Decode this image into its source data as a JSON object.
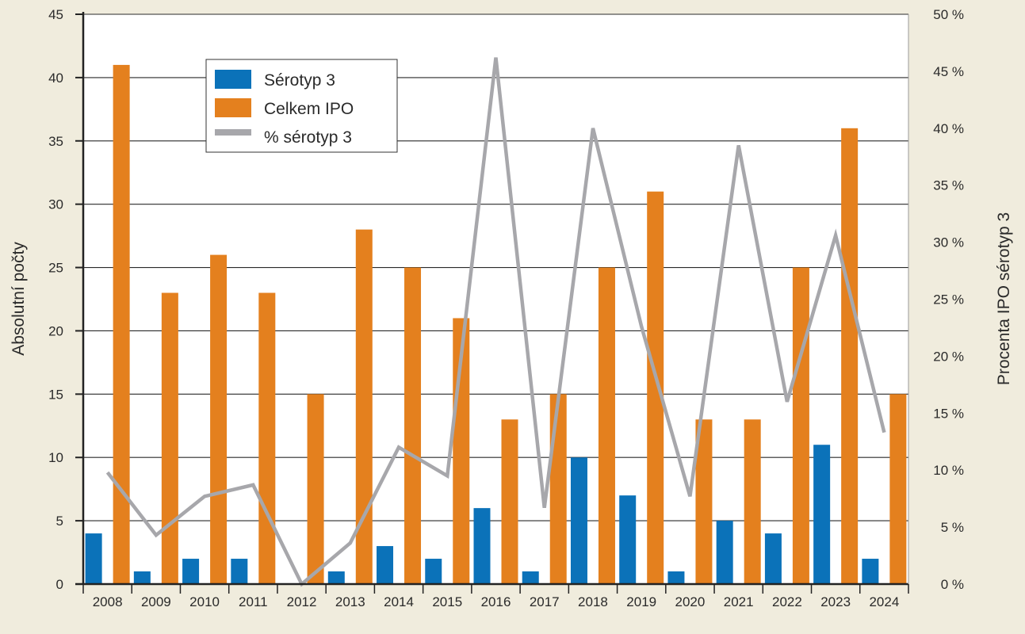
{
  "chart_data": {
    "type": "bar",
    "categories": [
      "2008",
      "2009",
      "2010",
      "2011",
      "2012",
      "2013",
      "2014",
      "2015",
      "2016",
      "2017",
      "2018",
      "2019",
      "2020",
      "2021",
      "2022",
      "2023",
      "2024"
    ],
    "series": [
      {
        "name": "Sérotyp 3",
        "type": "bar",
        "axis": "left",
        "color": "#0b72b9",
        "values": [
          4,
          1,
          2,
          2,
          0,
          1,
          3,
          2,
          6,
          1,
          10,
          7,
          1,
          5,
          4,
          11,
          2
        ]
      },
      {
        "name": "Celkem IPO",
        "type": "bar",
        "axis": "left",
        "color": "#e4801e",
        "values": [
          41,
          23,
          26,
          23,
          15,
          28,
          25,
          21,
          13,
          15,
          25,
          31,
          13,
          13,
          25,
          36,
          15
        ]
      },
      {
        "name": "% sérotyp 3",
        "type": "line",
        "axis": "right",
        "color": "#a7a7ab",
        "values": [
          9.8,
          4.3,
          7.7,
          8.7,
          0,
          3.6,
          12,
          9.5,
          46.2,
          6.7,
          40,
          22.6,
          7.7,
          38.5,
          16,
          30.6,
          13.3
        ]
      }
    ],
    "ylabel": "Absolutní počty",
    "ylabel_right": "Procenta IPO sérotyp 3",
    "ylim": [
      0,
      45
    ],
    "ylim_right": [
      0,
      50
    ],
    "yticks": [
      0,
      5,
      10,
      15,
      20,
      25,
      30,
      35,
      40,
      45
    ],
    "yticks_right": [
      0,
      5,
      10,
      15,
      20,
      25,
      30,
      35,
      40,
      45,
      50
    ],
    "right_tick_suffix": " %",
    "grid": "horizontal",
    "legend": "top-left",
    "colors": {
      "background": "#f0ecdd",
      "plot_background": "#ffffff",
      "axis": "#222222",
      "grid": "#2a2a2a"
    }
  }
}
